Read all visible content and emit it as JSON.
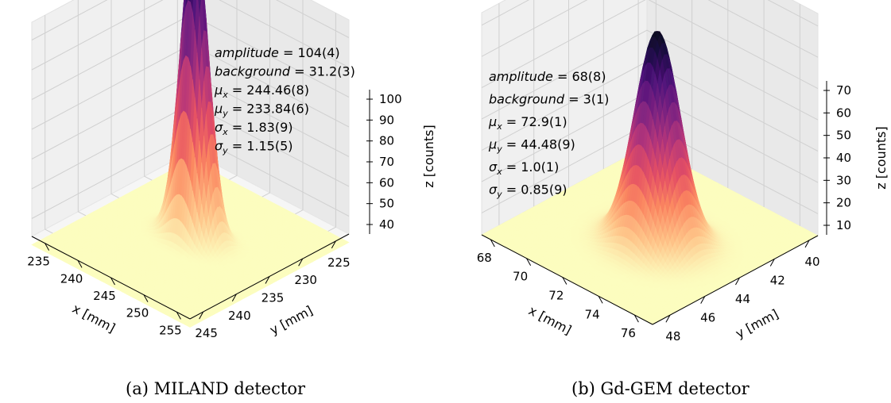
{
  "chart_data": [
    {
      "type": "surface",
      "caption": "(a) MILAND detector",
      "xlabel": "x [mm]",
      "ylabel": "y [mm]",
      "zlabel": "z [counts]",
      "x_ticks": [
        "235",
        "240",
        "245",
        "250",
        "255"
      ],
      "y_ticks": [
        "225",
        "230",
        "235",
        "240",
        "245"
      ],
      "z_ticks": [
        "40",
        "50",
        "60",
        "70",
        "80",
        "90",
        "100"
      ],
      "xlim": [
        233,
        257
      ],
      "ylim": [
        223,
        247
      ],
      "zlim": [
        34,
        106
      ],
      "background": 31.2,
      "amplitude": 104,
      "mu_x": 244.46,
      "mu_y": 233.84,
      "sigma_x": 1.83,
      "sigma_y": 1.15,
      "annotations": [
        {
          "sym": "amplitude",
          "sub": "",
          "val": " = 104(4)"
        },
        {
          "sym": "background",
          "sub": "",
          "val": " = 31.2(3)"
        },
        {
          "sym": "μ",
          "sub": "x",
          "val": " = 244.46(8)"
        },
        {
          "sym": "μ",
          "sub": "y",
          "val": " = 233.84(6)"
        },
        {
          "sym": "σ",
          "sub": "x",
          "val": " = 1.83(9)"
        },
        {
          "sym": "σ",
          "sub": "y",
          "val": " = 1.15(5)"
        }
      ]
    },
    {
      "type": "surface",
      "caption": "(b) Gd-GEM detector",
      "xlabel": "x [mm]",
      "ylabel": "y [mm]",
      "zlabel": "z [counts]",
      "x_ticks": [
        "68",
        "70",
        "72",
        "74",
        "76"
      ],
      "y_ticks": [
        "40",
        "42",
        "44",
        "46",
        "48"
      ],
      "z_ticks": [
        "10",
        "20",
        "30",
        "40",
        "50",
        "60",
        "70"
      ],
      "xlim": [
        67.5,
        77
      ],
      "ylim": [
        39.5,
        49
      ],
      "zlim": [
        3,
        74
      ],
      "background": 3,
      "amplitude": 68,
      "mu_x": 72.9,
      "mu_y": 44.48,
      "sigma_x": 1.0,
      "sigma_y": 0.85,
      "annotations": [
        {
          "sym": "amplitude",
          "sub": "",
          "val": " = 68(8)"
        },
        {
          "sym": "background",
          "sub": "",
          "val": " = 3(1)"
        },
        {
          "sym": "μ",
          "sub": "x",
          "val": " = 72.9(1)"
        },
        {
          "sym": "μ",
          "sub": "y",
          "val": " = 44.48(9)"
        },
        {
          "sym": "σ",
          "sub": "x",
          "val": " = 1.0(1)"
        },
        {
          "sym": "σ",
          "sub": "y",
          "val": " = 0.85(9)"
        }
      ]
    }
  ]
}
